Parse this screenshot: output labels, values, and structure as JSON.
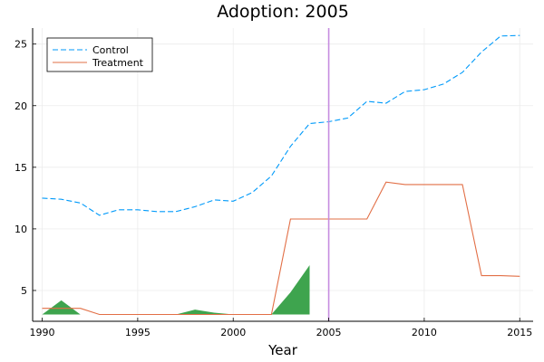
{
  "chart_data": {
    "type": "line",
    "title": "Adoption: 2005",
    "xlabel": "Year",
    "ylabel": "",
    "xlim": [
      1989.5,
      2015.7
    ],
    "ylim": [
      2.5,
      26.3
    ],
    "xticks": [
      1990,
      1995,
      2000,
      2005,
      2010,
      2015
    ],
    "yticks": [
      5,
      10,
      15,
      20,
      25
    ],
    "grid": true,
    "legend_position": "top-left",
    "x": [
      1990,
      1991,
      1992,
      1993,
      1994,
      1995,
      1996,
      1997,
      1998,
      1999,
      2000,
      2001,
      2002,
      2003,
      2004,
      2005,
      2006,
      2007,
      2008,
      2009,
      2010,
      2011,
      2012,
      2013,
      2014,
      2015
    ],
    "series": [
      {
        "name": "Control",
        "style": "dashed",
        "color": "#009AFA",
        "values": [
          12.5,
          12.4,
          12.1,
          11.1,
          11.55,
          11.55,
          11.4,
          11.4,
          11.8,
          12.35,
          12.25,
          12.95,
          14.3,
          16.7,
          18.55,
          18.7,
          19.0,
          20.35,
          20.2,
          21.15,
          21.3,
          21.75,
          22.7,
          24.35,
          25.65,
          25.7
        ]
      },
      {
        "name": "Treatment",
        "style": "solid",
        "color": "#E26F46",
        "values": [
          3.55,
          3.55,
          3.55,
          3.05,
          3.05,
          3.05,
          3.05,
          3.05,
          3.05,
          3.05,
          3.05,
          3.05,
          3.05,
          10.8,
          10.8,
          10.8,
          10.8,
          10.8,
          13.8,
          13.6,
          13.6,
          13.6,
          13.6,
          6.2,
          6.2,
          6.15
        ]
      }
    ],
    "band": {
      "color": "#3EA44E",
      "x": [
        1990,
        1991,
        1992,
        1993,
        1994,
        1995,
        1996,
        1997,
        1998,
        1999,
        2000,
        2001,
        2002,
        2003,
        2004
      ],
      "low": [
        3.05,
        3.05,
        3.05,
        3.05,
        3.05,
        3.05,
        3.05,
        3.05,
        3.05,
        3.05,
        3.05,
        3.05,
        3.05,
        3.05,
        3.05
      ],
      "high": [
        3.05,
        4.2,
        3.05,
        3.05,
        3.05,
        3.05,
        3.05,
        3.05,
        3.45,
        3.2,
        3.05,
        3.05,
        3.05,
        4.85,
        7.05
      ]
    },
    "vline": {
      "x": 2005,
      "color": "#C68CE0"
    }
  }
}
